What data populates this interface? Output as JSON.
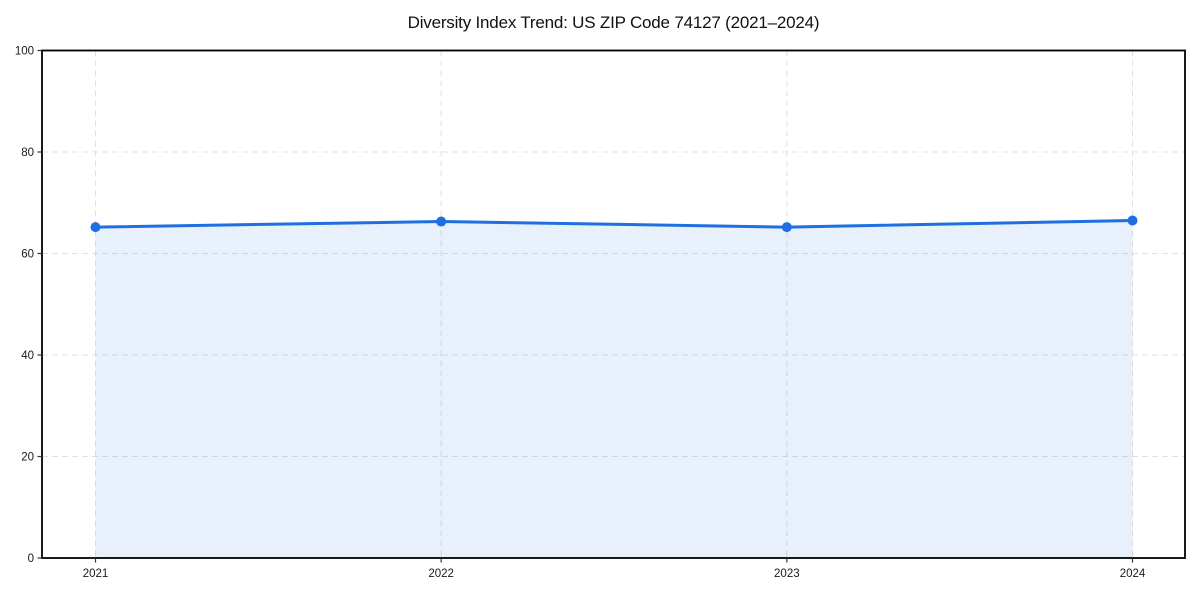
{
  "chart_data": {
    "type": "area",
    "title": "Diversity Index Trend: US ZIP Code 74127 (2021–2024)",
    "x": [
      "2021",
      "2022",
      "2023",
      "2024"
    ],
    "series": [
      {
        "name": "Diversity Index",
        "values": [
          65.2,
          66.3,
          65.2,
          66.5
        ]
      }
    ],
    "xlabel": "",
    "ylabel": "",
    "ylim": [
      0,
      100
    ],
    "yticks": [
      0,
      20,
      40,
      60,
      80,
      100
    ],
    "grid": "dashed-both-axes",
    "legend": "none",
    "marker": "circle",
    "colors": {
      "line": "#1f6fe0",
      "marker": "#1f6fe0",
      "fill": "#1f6fe0",
      "fill_opacity": 0.1,
      "grid": "#e0e0e0",
      "spine": "#000000",
      "tick": "#333333",
      "tick_label": "#1a1a1a",
      "title": "#111111",
      "background": "#ffffff"
    }
  }
}
